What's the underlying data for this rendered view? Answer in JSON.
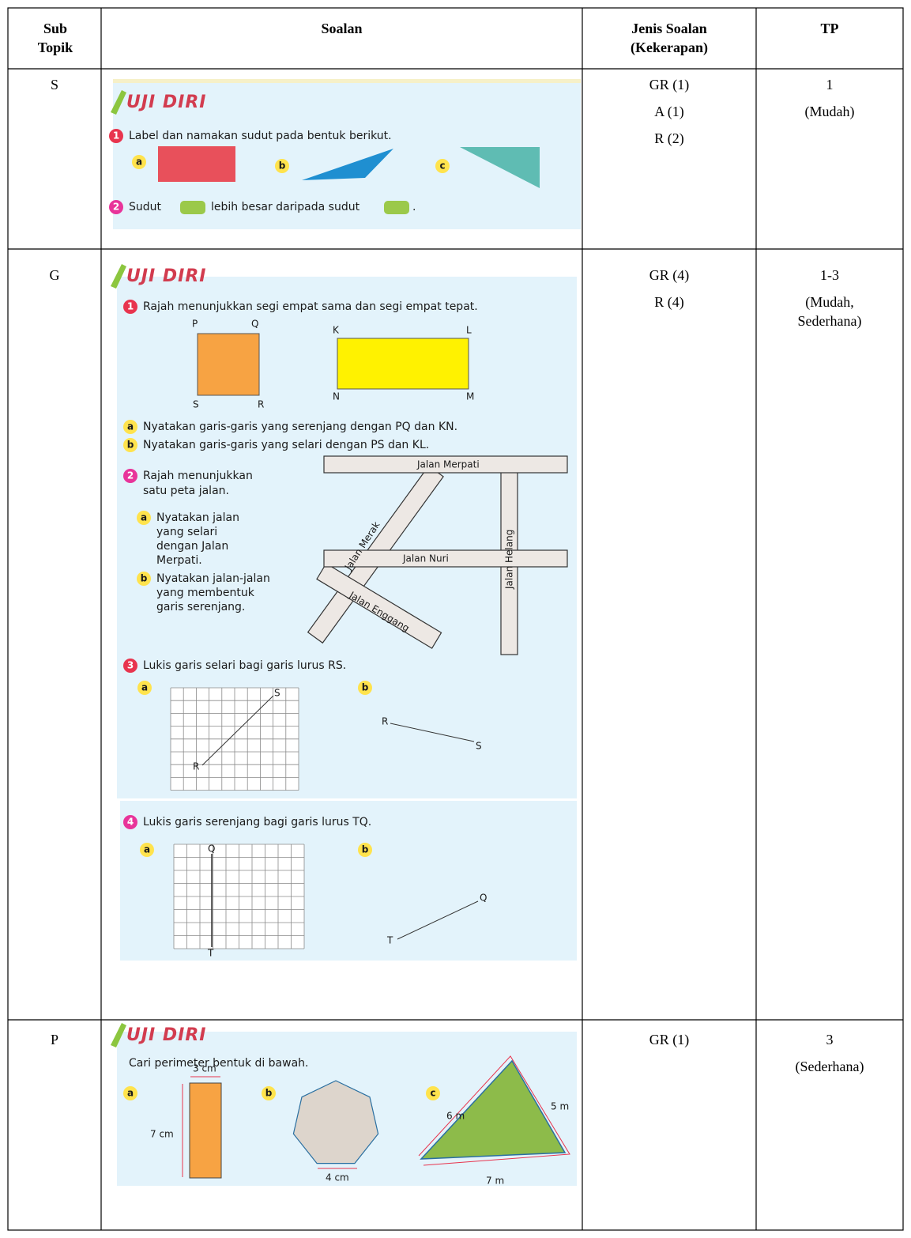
{
  "table": {
    "header": [
      "Sub Topik",
      "Soalan",
      "Jenis Soalan (Kekerapan)",
      "TP"
    ],
    "rows": [
      {
        "sub_topik": "S",
        "soalan": {
          "heading": "UJI DIRI",
          "q1": {
            "number": "1",
            "text": "Label dan namakan sudut pada bentuk berikut.",
            "parts": [
              "a",
              "b",
              "c"
            ]
          },
          "q2": {
            "number": "2",
            "text": [
              "Sudut",
              "lebih besar daripada sudut",
              "."
            ]
          }
        },
        "jenis": [
          "GR (1)",
          "A (1)",
          "R (2)"
        ],
        "tp": [
          "1",
          "(Mudah)"
        ]
      },
      {
        "sub_topik": "G",
        "soalan": {
          "heading": "UJI DIRI",
          "q1": {
            "number": "1",
            "text": "Rajah menunjukkan segi empat sama dan segi empat tepat.",
            "vertices": [
              "P",
              "Q",
              "S",
              "R",
              "K",
              "L",
              "N",
              "M"
            ],
            "parts": [
              {
                "letter": "a",
                "text": "Nyatakan garis-garis yang serenjang dengan PQ dan KN."
              },
              {
                "letter": "b",
                "text": "Nyatakan garis-garis yang selari dengan PS dan KL."
              }
            ]
          },
          "q2": {
            "number": "2",
            "text": [
              "Rajah menunjukkan",
              "satu peta jalan."
            ],
            "parts": [
              {
                "letter": "a",
                "text": [
                  "Nyatakan jalan",
                  "yang selari",
                  "dengan Jalan",
                  "Merpati."
                ]
              },
              {
                "letter": "b",
                "text": [
                  "Nyatakan jalan-jalan",
                  "yang membentuk",
                  "garis serenjang."
                ]
              }
            ],
            "streets": [
              "Jalan Merpati",
              "Jalan Nuri",
              "Jalan Merak",
              "Jalan Helang",
              "Jalan Enggang"
            ]
          },
          "q3": {
            "number": "3",
            "text": "Lukis garis selari bagi garis lurus RS.",
            "parts": [
              {
                "letter": "a",
                "points": [
                  "R",
                  "S"
                ]
              },
              {
                "letter": "b",
                "points": [
                  "R",
                  "S"
                ]
              }
            ]
          },
          "q4": {
            "number": "4",
            "text": "Lukis garis serenjang bagi garis lurus TQ.",
            "parts": [
              {
                "letter": "a",
                "points": [
                  "Q",
                  "T"
                ]
              },
              {
                "letter": "b",
                "points": [
                  "T",
                  "Q"
                ]
              }
            ]
          }
        },
        "jenis": [
          "GR (4)",
          "R (4)"
        ],
        "tp": [
          "1-3",
          "(Mudah, Sederhana)"
        ]
      },
      {
        "sub_topik": "P",
        "soalan": {
          "heading": "UJI DIRI",
          "q1": {
            "text": "Cari perimeter bentuk di bawah.",
            "parts": [
              {
                "letter": "a",
                "measures": [
                  "3 cm",
                  "7 cm"
                ]
              },
              {
                "letter": "b",
                "measures": [
                  "4 cm"
                ]
              },
              {
                "letter": "c",
                "measures": [
                  "6 m",
                  "5 m",
                  "7 m"
                ]
              }
            ]
          }
        },
        "jenis": [
          "GR (1)"
        ],
        "tp": [
          "3",
          "(Sederhana)"
        ]
      }
    ]
  }
}
